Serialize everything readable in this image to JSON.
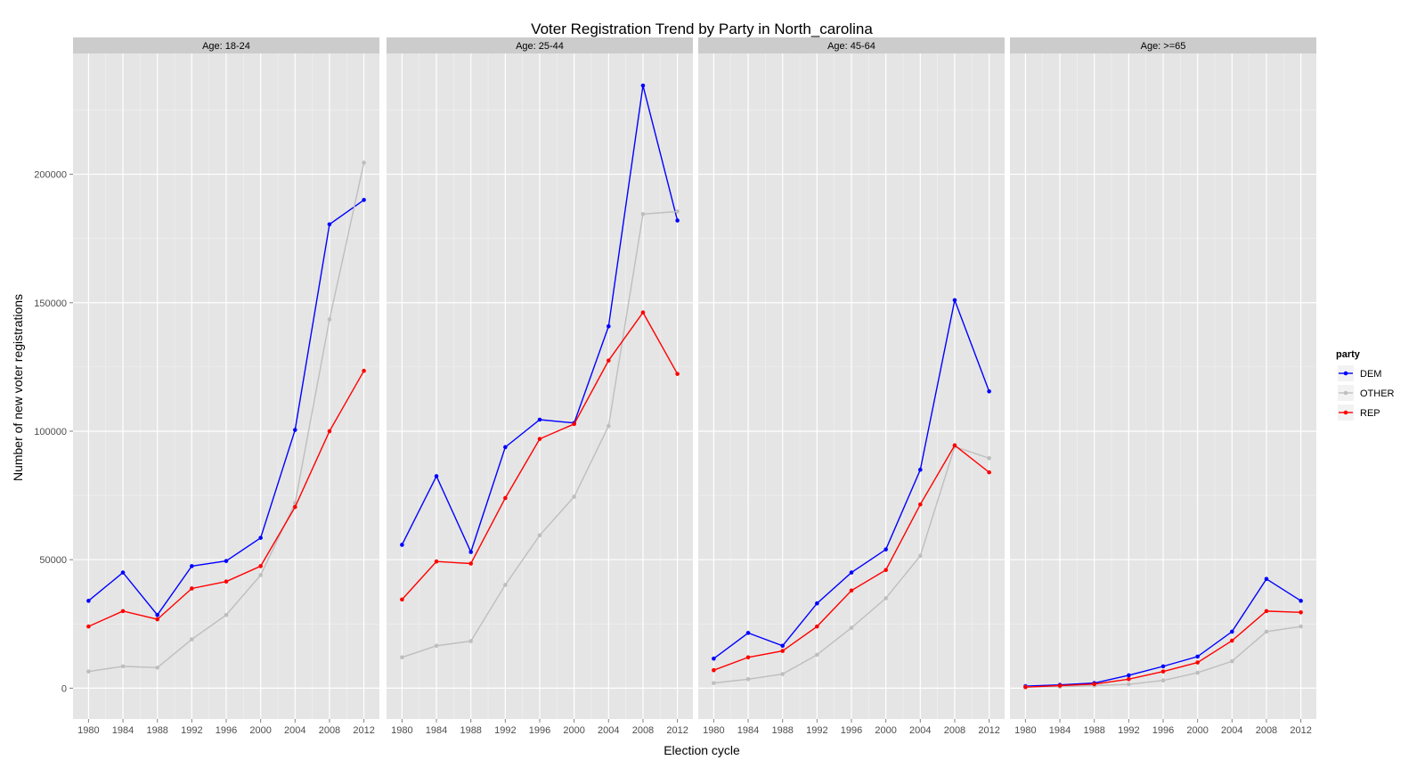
{
  "chart_data": {
    "type": "line",
    "title": "Voter Registration Trend by Party in North_carolina",
    "xlabel": "Election cycle",
    "ylabel": "Number of new voter registrations",
    "x": [
      1980,
      1984,
      1988,
      1992,
      1996,
      2000,
      2004,
      2008,
      2012
    ],
    "x_ticks": [
      "1980",
      "1984",
      "1988",
      "1992",
      "1996",
      "2000",
      "2004",
      "2008",
      "2012"
    ],
    "y_ticks": [
      "0",
      "50000",
      "100000",
      "150000",
      "200000"
    ],
    "ylim": [
      -12000,
      247000
    ],
    "grid": true,
    "legend": {
      "title": "party",
      "position": "right",
      "entries": [
        "DEM",
        "OTHER",
        "REP"
      ]
    },
    "colors": {
      "DEM": "#0000ff",
      "OTHER": "#bebebe",
      "REP": "#ff0000"
    },
    "panels": [
      {
        "label": "Age: 18-24",
        "series": [
          {
            "name": "DEM",
            "values": [
              34000,
              45000,
              28500,
              47500,
              49500,
              58500,
              100500,
              180500,
              190000
            ]
          },
          {
            "name": "OTHER",
            "values": [
              6500,
              8500,
              8000,
              19000,
              28500,
              44000,
              72000,
              143500,
              204500
            ]
          },
          {
            "name": "REP",
            "values": [
              24000,
              30000,
              26800,
              38800,
              41500,
              47500,
              70500,
              100000,
              123500
            ]
          }
        ]
      },
      {
        "label": "Age: 25-44",
        "series": [
          {
            "name": "DEM",
            "values": [
              55800,
              82500,
              53000,
              93800,
              104500,
              103200,
              140800,
              234500,
              182000
            ]
          },
          {
            "name": "OTHER",
            "values": [
              12000,
              16500,
              18300,
              40200,
              59500,
              74500,
              102000,
              184500,
              185500
            ]
          },
          {
            "name": "REP",
            "values": [
              34500,
              49300,
              48500,
              74000,
              97000,
              102800,
              127500,
              146200,
              122300
            ]
          }
        ]
      },
      {
        "label": "Age: 45-64",
        "series": [
          {
            "name": "DEM",
            "values": [
              11500,
              21500,
              16500,
              33000,
              45000,
              54000,
              85000,
              151000,
              115500
            ]
          },
          {
            "name": "OTHER",
            "values": [
              2000,
              3500,
              5500,
              13000,
              23500,
              35000,
              51500,
              94000,
              89500
            ]
          },
          {
            "name": "REP",
            "values": [
              7000,
              12000,
              14500,
              24000,
              38000,
              46000,
              71500,
              94500,
              84000
            ]
          }
        ]
      },
      {
        "label": "Age: >=65",
        "series": [
          {
            "name": "DEM",
            "values": [
              800,
              1300,
              2000,
              5000,
              8500,
              12300,
              22000,
              42500,
              34000
            ]
          },
          {
            "name": "OTHER",
            "values": [
              500,
              600,
              1000,
              1500,
              3000,
              6000,
              10500,
              22000,
              24000
            ]
          },
          {
            "name": "REP",
            "values": [
              400,
              1000,
              1600,
              3500,
              6500,
              10000,
              18500,
              30000,
              29500
            ]
          }
        ]
      }
    ]
  }
}
